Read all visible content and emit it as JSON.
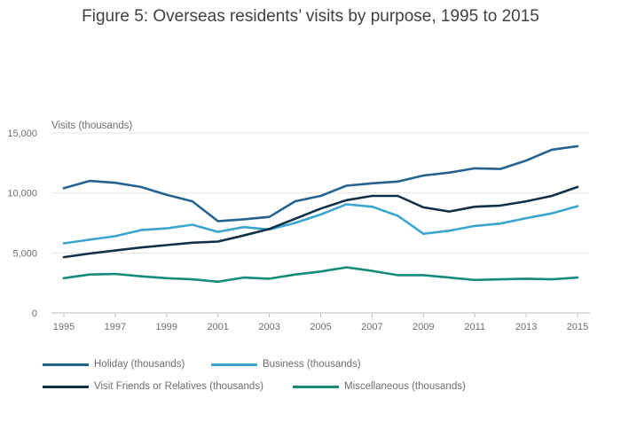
{
  "title": "Figure 5: Overseas residents’ visits by purpose, 1995 to 2015",
  "chart_data": {
    "type": "line",
    "title": "Figure 5: Overseas residents’ visits by purpose, 1995 to 2015",
    "ylabel": "Visits (thousands)",
    "xlabel": "",
    "x": [
      1995,
      1996,
      1997,
      1998,
      1999,
      2000,
      2001,
      2002,
      2003,
      2004,
      2005,
      2006,
      2007,
      2008,
      2009,
      2010,
      2011,
      2012,
      2013,
      2014,
      2015
    ],
    "xticks": [
      "1995",
      "1997",
      "1999",
      "2001",
      "2003",
      "2005",
      "2007",
      "2009",
      "2011",
      "2013",
      "2015"
    ],
    "yticks": [
      "0",
      "5,000",
      "10,000",
      "15,000"
    ],
    "ylim": [
      0,
      15000
    ],
    "grid": "horizontal",
    "legend_position": "bottom",
    "series": [
      {
        "name": "Holiday (thousands)",
        "color": "#24638f",
        "values": [
          10400,
          11000,
          10850,
          10500,
          9850,
          9300,
          7650,
          7800,
          8000,
          9300,
          9750,
          10600,
          10800,
          10950,
          11450,
          11700,
          12050,
          12000,
          12700,
          13600,
          13900
        ]
      },
      {
        "name": "Business (thousands)",
        "color": "#3aa5d1",
        "values": [
          5800,
          6100,
          6400,
          6900,
          7050,
          7350,
          6750,
          7150,
          6950,
          7500,
          8200,
          9050,
          8850,
          8100,
          6600,
          6850,
          7250,
          7450,
          7900,
          8300,
          8900
        ]
      },
      {
        "name": "Visit Friends or Relatives (thousands)",
        "color": "#0f3148",
        "values": [
          4650,
          4950,
          5200,
          5450,
          5650,
          5850,
          5950,
          6450,
          7000,
          7850,
          8700,
          9400,
          9750,
          9750,
          8800,
          8450,
          8850,
          8950,
          9300,
          9750,
          10500
        ]
      },
      {
        "name": "Miscellaneous (thousands)",
        "color": "#148c7c",
        "values": [
          2900,
          3200,
          3250,
          3050,
          2900,
          2800,
          2600,
          2950,
          2850,
          3200,
          3450,
          3800,
          3500,
          3150,
          3150,
          2950,
          2750,
          2800,
          2850,
          2800,
          2950
        ]
      }
    ]
  }
}
